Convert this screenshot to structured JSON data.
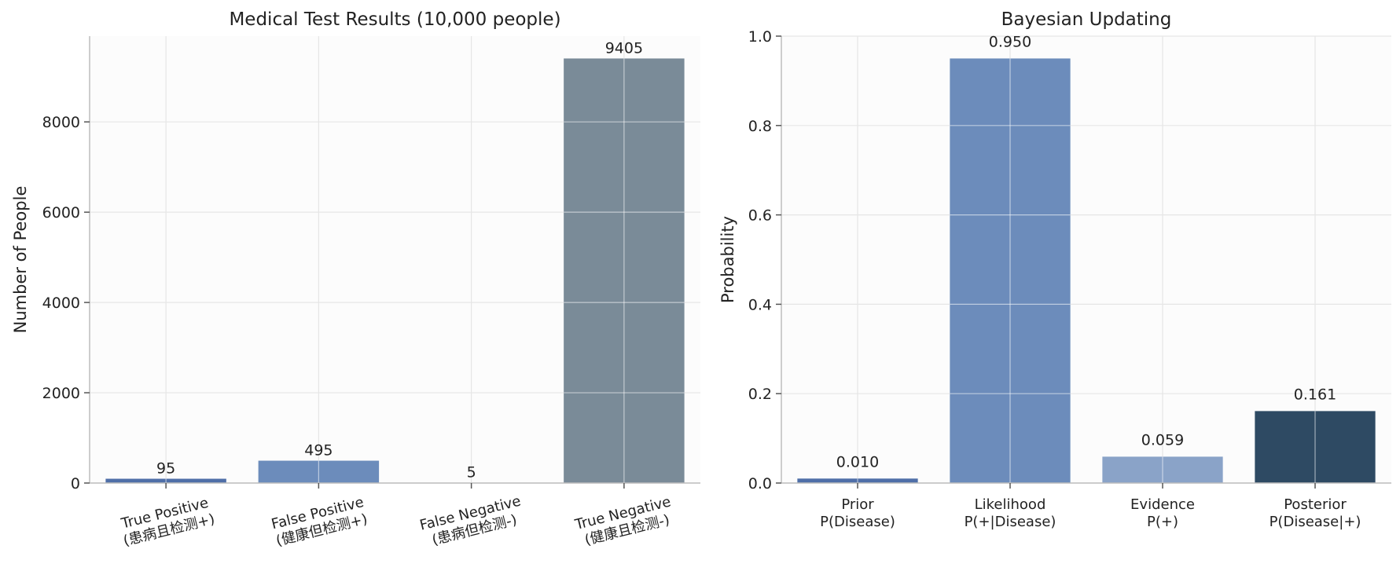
{
  "chart_data": [
    {
      "type": "bar",
      "title": "Medical Test Results (10,000 people)",
      "xlabel": "",
      "ylabel": "Number of People",
      "ylim": [
        0,
        9900
      ],
      "yticks": [
        0,
        2000,
        4000,
        6000,
        8000
      ],
      "grid": true,
      "categories": [
        [
          "True Positive",
          "(患病且检测+)"
        ],
        [
          "False Positive",
          "(健康但检测+)"
        ],
        [
          "False Negative",
          "(患病但检测-)"
        ],
        [
          "True Negative",
          "(健康且检测-)"
        ]
      ],
      "values": [
        95,
        495,
        5,
        9405
      ],
      "value_labels": [
        "95",
        "495",
        "5",
        "9405"
      ],
      "colors": [
        "#4f6fa8",
        "#6c8cbb",
        "#8aa3c8",
        "#7a8b98"
      ]
    },
    {
      "type": "bar",
      "title": "Bayesian Updating",
      "xlabel": "",
      "ylabel": "Probability",
      "ylim": [
        0,
        1.0
      ],
      "yticks": [
        0.0,
        0.2,
        0.4,
        0.6,
        0.8,
        1.0
      ],
      "ytick_labels": [
        "0.0",
        "0.2",
        "0.4",
        "0.6",
        "0.8",
        "1.0"
      ],
      "grid": true,
      "categories": [
        [
          "Prior",
          "P(Disease)"
        ],
        [
          "Likelihood",
          "P(+|Disease)"
        ],
        [
          "Evidence",
          "P(+)"
        ],
        [
          "Posterior",
          "P(Disease|+)"
        ]
      ],
      "values": [
        0.01,
        0.95,
        0.059,
        0.161
      ],
      "value_labels": [
        "0.010",
        "0.950",
        "0.059",
        "0.161"
      ],
      "colors": [
        "#4f6fa8",
        "#6c8cbb",
        "#8aa3c8",
        "#2e4a63"
      ]
    }
  ]
}
